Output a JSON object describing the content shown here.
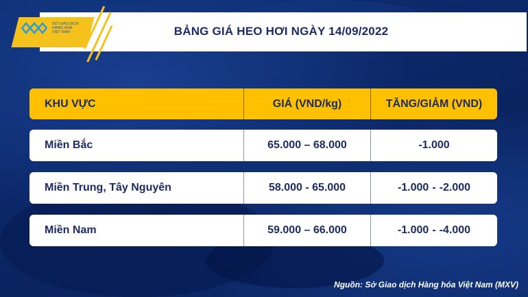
{
  "logo": {
    "text": [
      "SỞ GIAO DỊCH",
      "HÀNG HÓA",
      "VIỆT NAM"
    ]
  },
  "title": "BẢNG GIÁ HEO HƠI NGÀY 14/09/2022",
  "table": {
    "headers": [
      "KHU VỰC",
      "GIÁ (VND/kg)",
      "TĂNG/GIẢM (VND)"
    ],
    "rows": [
      {
        "region": "Miền Bắc",
        "price": "65.000 – 68.000",
        "change": [
          "-1.000"
        ]
      },
      {
        "region": "Miền Trung, Tây Nguyên",
        "price": "58.000 - 65.000",
        "change": [
          "-1.000",
          "-2.000"
        ]
      },
      {
        "region": "Miền Nam",
        "price": "59.000 – 66.000",
        "change": [
          "-1.000",
          "-4.000"
        ]
      }
    ],
    "change_separator": "-"
  },
  "source": "Nguồn: Sở Giao dịch Hàng hóa Việt Nam (MXV)",
  "colors": {
    "header": "#ffc000",
    "negative": "#ee1111",
    "text": "#1c2b66",
    "background": "#0d2c70"
  }
}
